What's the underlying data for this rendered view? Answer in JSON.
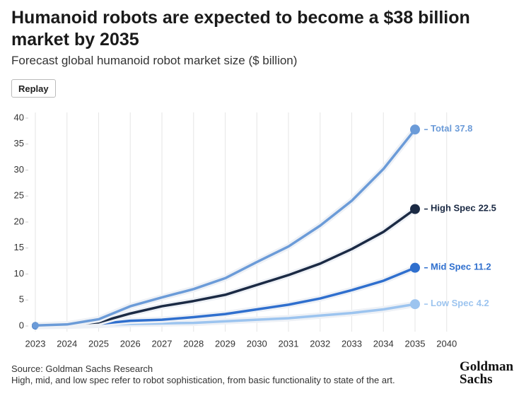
{
  "chart_data": {
    "type": "line",
    "title": "Humanoid robots are expected to become a $38 billion market by 2035",
    "subtitle": "Forecast global humanoid robot market size ($ billion)",
    "button": "Replay",
    "categories": [
      "2023",
      "2024",
      "2025",
      "2026",
      "2027",
      "2028",
      "2029",
      "2030",
      "2031",
      "2032",
      "2033",
      "2034",
      "2035",
      "2040"
    ],
    "series": [
      {
        "name": "Total",
        "color": "#6b9bd8",
        "values": [
          0.1,
          0.3,
          1.3,
          3.8,
          5.5,
          7.1,
          9.2,
          12.3,
          15.3,
          19.3,
          24.1,
          30.2,
          37.8,
          null
        ]
      },
      {
        "name": "High Spec",
        "color": "#1b2a44",
        "values": [
          0.1,
          0.3,
          0.7,
          2.4,
          3.8,
          4.8,
          6.0,
          7.9,
          9.8,
          12.0,
          14.8,
          18.1,
          22.5,
          null
        ]
      },
      {
        "name": "Mid Spec",
        "color": "#2f6fce",
        "values": [
          0,
          0.1,
          0.4,
          1.0,
          1.2,
          1.7,
          2.3,
          3.2,
          4.1,
          5.3,
          6.9,
          8.7,
          11.2,
          null
        ]
      },
      {
        "name": "Low Spec",
        "color": "#9cc4ef",
        "values": [
          0,
          0.05,
          0.2,
          0.4,
          0.5,
          0.6,
          0.9,
          1.2,
          1.5,
          2.0,
          2.5,
          3.2,
          4.2,
          null
        ]
      }
    ],
    "ylim": [
      0,
      40
    ],
    "yticks": [
      0,
      5,
      10,
      15,
      20,
      25,
      30,
      35,
      40
    ],
    "grid": true,
    "source": "Source: Goldman Sachs Research",
    "note": "High, mid, and low spec refer to robot sophistication, from basic functionality to state of the art.",
    "logo": "Goldman Sachs"
  }
}
